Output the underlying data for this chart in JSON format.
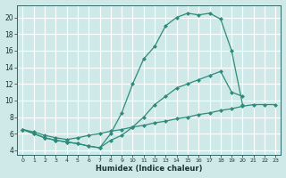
{
  "xlabel": "Humidex (Indice chaleur)",
  "ylabel": "",
  "xlim": [
    -0.5,
    23.5
  ],
  "ylim": [
    3.5,
    21.5
  ],
  "yticks": [
    4,
    6,
    8,
    10,
    12,
    14,
    16,
    18,
    20
  ],
  "xticks": [
    0,
    1,
    2,
    3,
    4,
    5,
    6,
    7,
    8,
    9,
    10,
    11,
    12,
    13,
    14,
    15,
    16,
    17,
    18,
    19,
    20,
    21,
    22,
    23
  ],
  "background_color": "#cfe9e9",
  "grid_color": "#ffffff",
  "line_color": "#2e8b7a",
  "curve1_x": [
    0,
    1,
    2,
    3,
    4,
    5,
    6,
    7,
    8,
    9,
    10,
    11,
    12,
    13,
    14,
    15,
    16,
    17,
    18,
    19,
    20
  ],
  "curve1_y": [
    6.5,
    6.0,
    5.5,
    5.2,
    5.0,
    4.8,
    4.5,
    4.3,
    6.0,
    8.5,
    12.0,
    15.0,
    16.5,
    19.0,
    20.0,
    20.5,
    20.3,
    20.5,
    19.8,
    16.0,
    9.5
  ],
  "curve2_x": [
    0,
    1,
    2,
    3,
    4,
    5,
    6,
    7,
    8,
    9,
    10,
    11,
    12,
    13,
    14,
    15,
    16,
    17,
    18,
    19,
    20
  ],
  "curve2_y": [
    6.5,
    6.0,
    5.5,
    5.2,
    5.0,
    4.8,
    4.5,
    4.3,
    5.2,
    5.8,
    6.8,
    8.0,
    9.5,
    10.5,
    11.5,
    12.0,
    12.5,
    13.0,
    13.5,
    11.0,
    10.5
  ],
  "curve3_x": [
    0,
    1,
    2,
    3,
    4,
    5,
    6,
    7,
    8,
    9,
    10,
    11,
    12,
    13,
    14,
    15,
    16,
    17,
    18,
    19,
    20,
    21,
    22,
    23
  ],
  "curve3_y": [
    6.5,
    6.2,
    5.8,
    5.5,
    5.3,
    5.5,
    5.8,
    6.0,
    6.3,
    6.5,
    6.8,
    7.0,
    7.3,
    7.5,
    7.8,
    8.0,
    8.3,
    8.5,
    8.8,
    9.0,
    9.3,
    9.5,
    9.5,
    9.5
  ]
}
